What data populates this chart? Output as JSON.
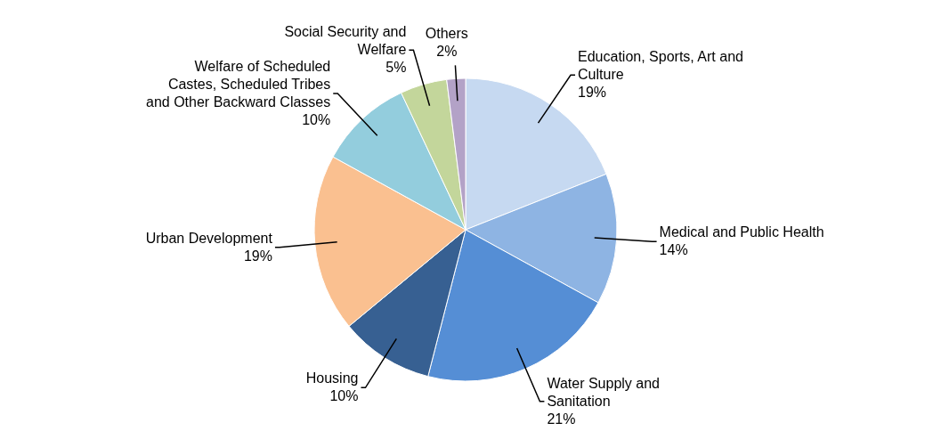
{
  "chart_data": {
    "type": "pie",
    "categories": [
      "Education, Sports, Art and Culture",
      "Medical and Public Health",
      "Water Supply and Sanitation",
      "Housing",
      "Urban Development",
      "Welfare of Scheduled Castes, Scheduled Tribes and Other Backward Classes",
      "Social Security and Welfare",
      "Others"
    ],
    "values": [
      19,
      14,
      21,
      10,
      19,
      10,
      5,
      2
    ],
    "value_labels": [
      "19%",
      "14%",
      "21%",
      "10%",
      "19%",
      "10%",
      "5%",
      "2%"
    ],
    "colors": [
      "#c6d9f1",
      "#8eb4e3",
      "#558ed5",
      "#376092",
      "#fac090",
      "#93cddd",
      "#c3d69b",
      "#b3a2c7"
    ],
    "legend": false
  }
}
